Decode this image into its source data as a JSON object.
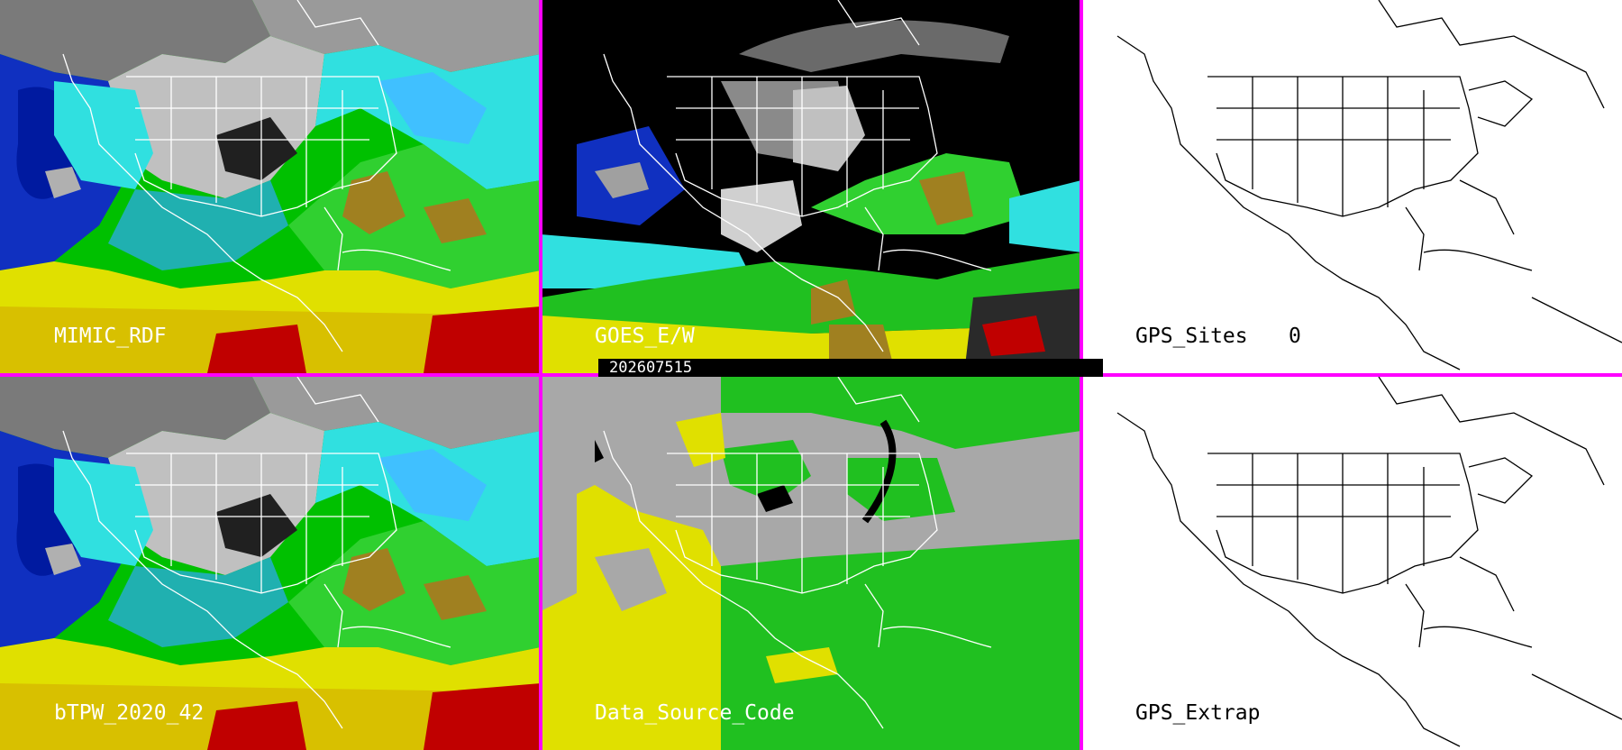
{
  "timestamp": "202607515",
  "colors": {
    "divider": "#ff00ff",
    "map_lines_on_image": "#ffffff",
    "map_lines_on_blank": "#000000",
    "timebar_bg": "#000000"
  },
  "panels": [
    {
      "id": "mimic-rdf",
      "label": "MIMIC_RDF",
      "style": "tpw"
    },
    {
      "id": "goes-ew",
      "label": "GOES_E/W",
      "style": "goes"
    },
    {
      "id": "gps-sites",
      "label": "GPS_Sites",
      "count": "0",
      "style": "blank"
    },
    {
      "id": "btpw",
      "label": "bTPW_2020_42",
      "style": "tpw"
    },
    {
      "id": "data-source-code",
      "label": "Data_Source_Code",
      "style": "source"
    },
    {
      "id": "gps-extrap",
      "label": "GPS_Extrap",
      "style": "blank"
    }
  ]
}
